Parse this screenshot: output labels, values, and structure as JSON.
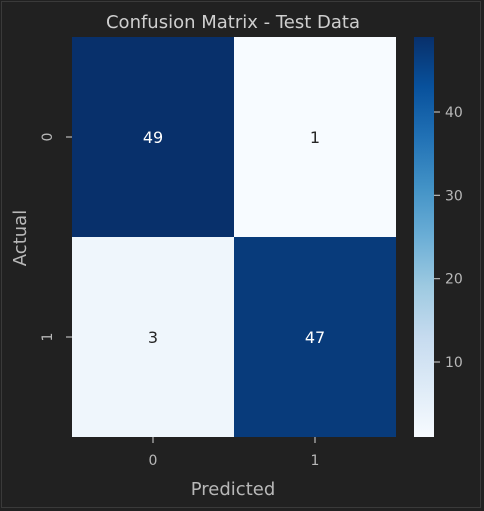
{
  "chart_data": {
    "type": "heatmap",
    "title": "Confusion Matrix - Test Data",
    "xlabel": "Predicted",
    "ylabel": "Actual",
    "x_categories": [
      "0",
      "1"
    ],
    "y_categories": [
      "0",
      "1"
    ],
    "matrix": [
      [
        49,
        1
      ],
      [
        3,
        47
      ]
    ],
    "colormap": "Blues",
    "colorbar": {
      "range": [
        1,
        49
      ],
      "ticks": [
        10,
        20,
        30,
        40
      ]
    },
    "annotations": true,
    "grid": false
  }
}
